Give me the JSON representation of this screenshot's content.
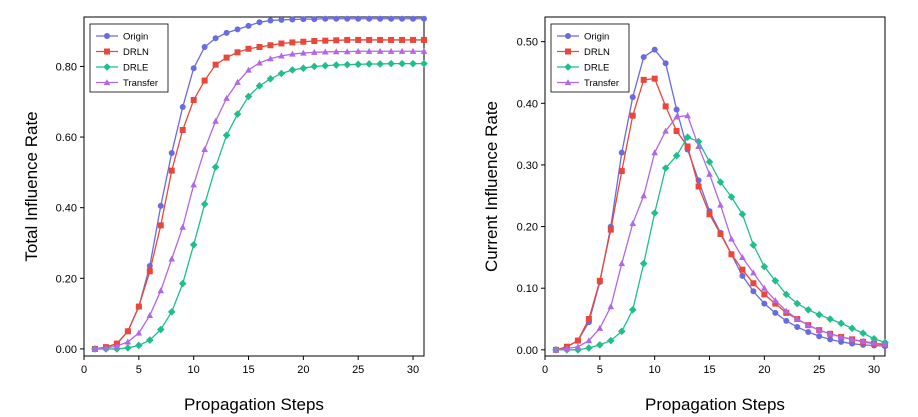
{
  "chart_data": [
    {
      "type": "line",
      "xlabel": "Propagation Steps",
      "ylabel": "Total Influence Rate",
      "xlim": [
        0,
        31
      ],
      "ylim": [
        -0.02,
        0.94
      ],
      "xticks": [
        0,
        5,
        10,
        15,
        20,
        25,
        30
      ],
      "yticks": [
        0.0,
        0.2,
        0.4,
        0.6,
        0.8
      ],
      "ytick_labels": [
        "0.00",
        "0.20",
        "0.40",
        "0.60",
        "0.80"
      ],
      "legend": "top-left",
      "grid": false,
      "x": [
        1,
        2,
        3,
        4,
        5,
        6,
        7,
        8,
        9,
        10,
        11,
        12,
        13,
        14,
        15,
        16,
        17,
        18,
        19,
        20,
        21,
        22,
        23,
        24,
        25,
        26,
        27,
        28,
        29,
        30,
        31
      ],
      "series": [
        {
          "name": "Origin",
          "color": "#6a6be0",
          "marker": "circle",
          "values": [
            0.0,
            0.005,
            0.015,
            0.05,
            0.12,
            0.235,
            0.405,
            0.555,
            0.685,
            0.795,
            0.855,
            0.88,
            0.895,
            0.905,
            0.915,
            0.925,
            0.93,
            0.932,
            0.933,
            0.934,
            0.934,
            0.935,
            0.935,
            0.935,
            0.935,
            0.935,
            0.935,
            0.935,
            0.935,
            0.935,
            0.935
          ]
        },
        {
          "name": "DRLN",
          "color": "#e8473a",
          "marker": "square",
          "values": [
            0.0,
            0.005,
            0.015,
            0.05,
            0.12,
            0.22,
            0.35,
            0.505,
            0.62,
            0.705,
            0.76,
            0.805,
            0.825,
            0.84,
            0.85,
            0.855,
            0.86,
            0.865,
            0.868,
            0.87,
            0.872,
            0.873,
            0.874,
            0.875,
            0.875,
            0.875,
            0.875,
            0.875,
            0.875,
            0.875,
            0.875
          ]
        },
        {
          "name": "DRLE",
          "color": "#1fbf8c",
          "marker": "diamond",
          "values": [
            0.0,
            0.0,
            0.0,
            0.003,
            0.01,
            0.025,
            0.055,
            0.105,
            0.185,
            0.295,
            0.41,
            0.515,
            0.605,
            0.665,
            0.715,
            0.745,
            0.765,
            0.78,
            0.79,
            0.795,
            0.8,
            0.802,
            0.804,
            0.805,
            0.806,
            0.807,
            0.807,
            0.808,
            0.808,
            0.808,
            0.808
          ]
        },
        {
          "name": "Transfer",
          "color": "#b267e6",
          "marker": "triangle",
          "values": [
            0.0,
            0.003,
            0.008,
            0.02,
            0.045,
            0.095,
            0.165,
            0.255,
            0.345,
            0.465,
            0.565,
            0.645,
            0.71,
            0.755,
            0.79,
            0.81,
            0.822,
            0.83,
            0.835,
            0.838,
            0.84,
            0.841,
            0.842,
            0.842,
            0.843,
            0.843,
            0.843,
            0.843,
            0.843,
            0.843,
            0.843
          ]
        }
      ]
    },
    {
      "type": "line",
      "xlabel": "Propagation Steps",
      "ylabel": "Current Influence Rate",
      "xlim": [
        0,
        31
      ],
      "ylim": [
        -0.01,
        0.54
      ],
      "xticks": [
        0,
        5,
        10,
        15,
        20,
        25,
        30
      ],
      "yticks": [
        0.0,
        0.1,
        0.2,
        0.3,
        0.4,
        0.5
      ],
      "ytick_labels": [
        "0.00",
        "0.10",
        "0.20",
        "0.30",
        "0.40",
        "0.50"
      ],
      "legend": "top-left",
      "grid": false,
      "x": [
        1,
        2,
        3,
        4,
        5,
        6,
        7,
        8,
        9,
        10,
        11,
        12,
        13,
        14,
        15,
        16,
        17,
        18,
        19,
        20,
        21,
        22,
        23,
        24,
        25,
        26,
        27,
        28,
        29,
        30,
        31
      ],
      "series": [
        {
          "name": "Origin",
          "color": "#6a6be0",
          "marker": "circle",
          "values": [
            0.0,
            0.005,
            0.015,
            0.045,
            0.11,
            0.2,
            0.32,
            0.41,
            0.475,
            0.487,
            0.465,
            0.39,
            0.325,
            0.275,
            0.225,
            0.19,
            0.155,
            0.12,
            0.095,
            0.075,
            0.06,
            0.047,
            0.037,
            0.029,
            0.022,
            0.017,
            0.013,
            0.01,
            0.008,
            0.007,
            0.006
          ]
        },
        {
          "name": "DRLN",
          "color": "#e8473a",
          "marker": "square",
          "values": [
            0.0,
            0.005,
            0.015,
            0.05,
            0.112,
            0.195,
            0.29,
            0.38,
            0.438,
            0.44,
            0.395,
            0.355,
            0.33,
            0.265,
            0.22,
            0.188,
            0.155,
            0.13,
            0.108,
            0.09,
            0.075,
            0.06,
            0.05,
            0.04,
            0.032,
            0.026,
            0.021,
            0.017,
            0.013,
            0.01,
            0.008
          ]
        },
        {
          "name": "DRLE",
          "color": "#1fbf8c",
          "marker": "diamond",
          "values": [
            0.0,
            0.0,
            0.0,
            0.003,
            0.008,
            0.015,
            0.03,
            0.065,
            0.14,
            0.222,
            0.295,
            0.315,
            0.345,
            0.338,
            0.305,
            0.272,
            0.248,
            0.22,
            0.17,
            0.135,
            0.112,
            0.09,
            0.075,
            0.065,
            0.057,
            0.05,
            0.043,
            0.035,
            0.027,
            0.018,
            0.012
          ]
        },
        {
          "name": "Transfer",
          "color": "#b267e6",
          "marker": "triangle",
          "values": [
            0.0,
            0.002,
            0.005,
            0.015,
            0.035,
            0.07,
            0.14,
            0.205,
            0.25,
            0.32,
            0.355,
            0.378,
            0.38,
            0.33,
            0.285,
            0.235,
            0.18,
            0.15,
            0.125,
            0.1,
            0.08,
            0.063,
            0.05,
            0.04,
            0.032,
            0.026,
            0.021,
            0.017,
            0.014,
            0.011,
            0.009
          ]
        }
      ]
    }
  ]
}
